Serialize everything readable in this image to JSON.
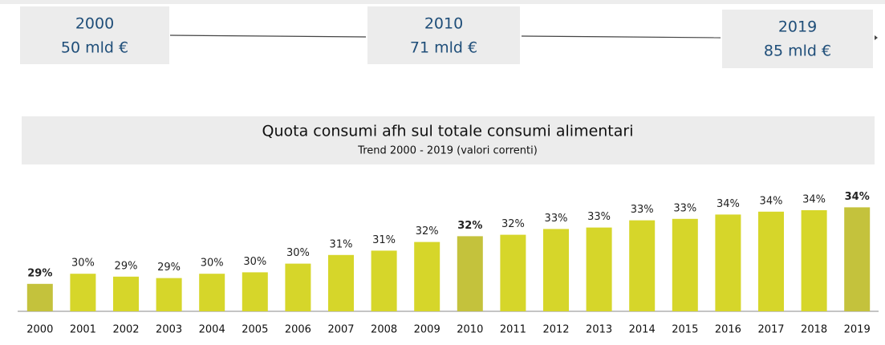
{
  "timeline": [
    {
      "year": "2000",
      "value": "50 mld €"
    },
    {
      "year": "2010",
      "value": "71 mld €"
    },
    {
      "year": "2019",
      "value": "85 mld €"
    }
  ],
  "chart_data": {
    "type": "bar",
    "title": "Quota consumi afh sul totale consumi alimentari",
    "subtitle": "Trend 2000 - 2019 (valori correnti)",
    "categories": [
      "2000",
      "2001",
      "2002",
      "2003",
      "2004",
      "2005",
      "2006",
      "2007",
      "2008",
      "2009",
      "2010",
      "2011",
      "2012",
      "2013",
      "2014",
      "2015",
      "2016",
      "2017",
      "2018",
      "2019"
    ],
    "values": [
      28.9,
      29.6,
      29.4,
      29.3,
      29.6,
      29.7,
      30.3,
      30.9,
      31.2,
      31.8,
      32.2,
      32.3,
      32.7,
      32.8,
      33.3,
      33.4,
      33.7,
      33.9,
      34.0,
      34.2
    ],
    "value_labels": [
      "29%",
      "30%",
      "29%",
      "29%",
      "30%",
      "30%",
      "30%",
      "31%",
      "31%",
      "32%",
      "32%",
      "32%",
      "33%",
      "33%",
      "33%",
      "33%",
      "34%",
      "34%",
      "34%",
      "34%"
    ],
    "color": "#d6d62a",
    "colors": [
      "#c4c23c",
      "#d6d62a",
      "#d6d62a",
      "#d6d62a",
      "#d6d62a",
      "#d6d62a",
      "#d6d62a",
      "#d6d62a",
      "#d6d62a",
      "#d6d62a",
      "#c4c23c",
      "#d6d62a",
      "#d6d62a",
      "#d6d62a",
      "#d6d62a",
      "#d6d62a",
      "#d6d62a",
      "#d6d62a",
      "#d6d62a",
      "#c4c23c"
    ],
    "ylim": [
      27,
      35
    ]
  }
}
